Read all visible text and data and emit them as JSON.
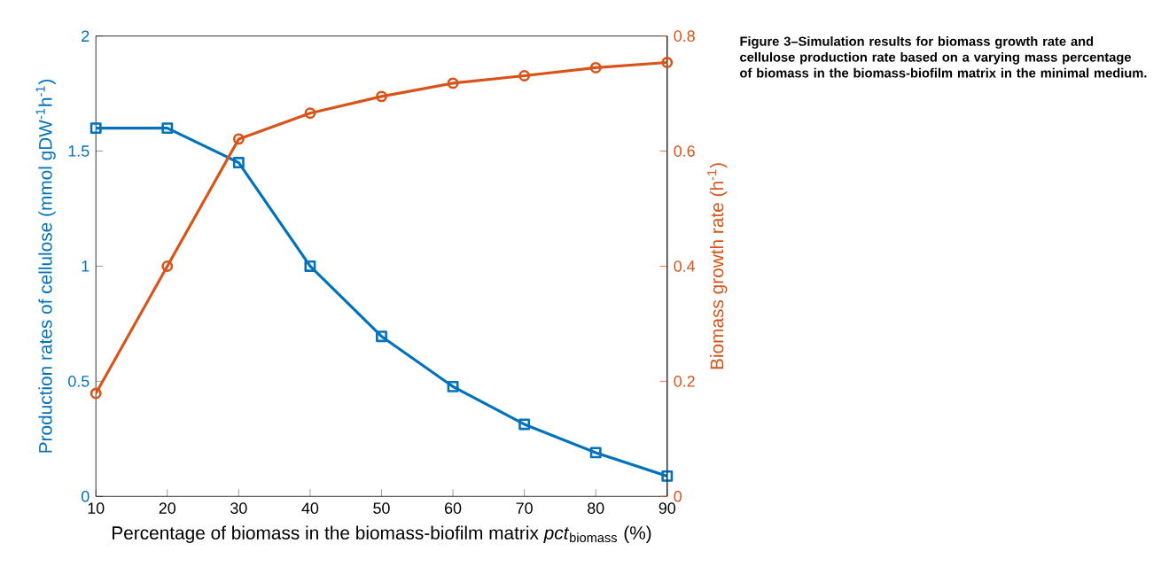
{
  "chart_data": {
    "type": "line",
    "xlabel": "Percentage of biomass in the biomass-biofilm matrix *pct*$_{biomass}$ (%)",
    "ylabel": "Production rates of cellulose (mmol gDW$^{-1}$h$^{-1}$)",
    "y2label": "Biomass growth rate (h$^{-1}$)",
    "annotations": [
      "Figure 3–Simulation results for biomass growth rate and cellulose production rate based on a varying mass percentage of biomass in the biomass-biofilm matrix in the minimal medium."
    ],
    "x": [
      10,
      20,
      30,
      40,
      50,
      60,
      70,
      80,
      90
    ],
    "series": [
      {
        "color": "#0072bd",
        "marker": "square",
        "values": [
          1.6,
          1.6,
          1.45,
          1.0,
          0.695,
          0.477,
          0.313,
          0.19,
          0.088
        ]
      },
      {
        "color": "#d95319",
        "marker": "circle",
        "axis": "y2",
        "values": [
          0.179,
          0.4,
          0.621,
          0.666,
          0.695,
          0.718,
          0.731,
          0.745,
          0.754
        ]
      }
    ],
    "xlim": [
      10,
      90
    ],
    "xticks": [
      10,
      20,
      30,
      40,
      50,
      60,
      70,
      80,
      90
    ],
    "ylim": [
      0,
      2
    ],
    "yticks": [
      0,
      0.5,
      1,
      1.5,
      2
    ],
    "y2lim": [
      0,
      0.8
    ],
    "y2ticks": [
      0,
      0.2,
      0.4,
      0.6,
      0.8
    ],
    "grid": false,
    "line_style": "solid"
  }
}
